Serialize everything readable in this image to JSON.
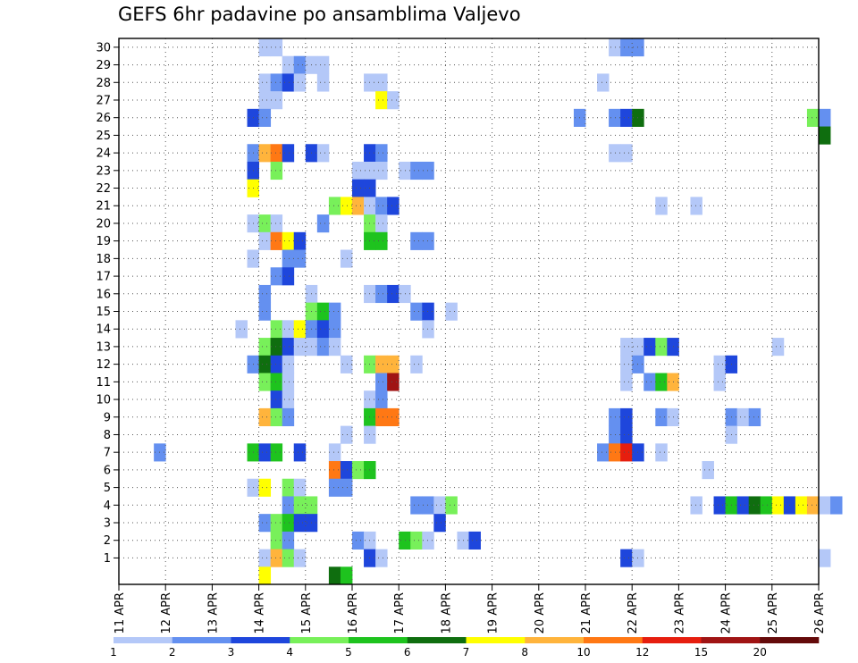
{
  "chart_data": {
    "type": "heatmap",
    "title": "GEFS 6hr padavine po ansamblima Valjevo",
    "xlabel": "",
    "ylabel": "",
    "x_tick_labels": [
      "11 APR",
      "12 APR",
      "13 APR",
      "14 APR",
      "15 APR",
      "16 APR",
      "17 APR",
      "18 APR",
      "19 APR",
      "20 APR",
      "21 APR",
      "22 APR",
      "23 APR",
      "24 APR",
      "25 APR",
      "26 APR"
    ],
    "xlim": [
      "11 APR 00Z",
      "26 APR 00Z"
    ],
    "time_step_hours": 6,
    "y_tick_labels": [
      "1",
      "2",
      "3",
      "4",
      "5",
      "6",
      "7",
      "8",
      "9",
      "10",
      "11",
      "12",
      "13",
      "14",
      "15",
      "16",
      "17",
      "18",
      "19",
      "20",
      "21",
      "22",
      "23",
      "24",
      "25",
      "26",
      "27",
      "28",
      "29",
      "30"
    ],
    "ylim": [
      0,
      30
    ],
    "grid": true,
    "colorbar": {
      "position": "bottom",
      "labels": [
        "1",
        "2",
        "3",
        "4",
        "5",
        "6",
        "7",
        "8",
        "10",
        "12",
        "15",
        "20"
      ],
      "colors": [
        "#b4c8f8",
        "#6490f0",
        "#1e46dc",
        "#78f05a",
        "#1ec31e",
        "#0f6e0f",
        "#ffff00",
        "#ffb43c",
        "#ff7814",
        "#e61e0f",
        "#a01414",
        "#640a0a"
      ]
    },
    "cells": [
      {
        "member": 30,
        "step": 12,
        "bin": 0
      },
      {
        "member": 30,
        "step": 13,
        "bin": 0
      },
      {
        "member": 30,
        "step": 42,
        "bin": 0
      },
      {
        "member": 30,
        "step": 43,
        "bin": 1
      },
      {
        "member": 30,
        "step": 44,
        "bin": 1
      },
      {
        "member": 29,
        "step": 14,
        "bin": 0
      },
      {
        "member": 29,
        "step": 15,
        "bin": 1
      },
      {
        "member": 29,
        "step": 16,
        "bin": 0
      },
      {
        "member": 29,
        "step": 17,
        "bin": 0
      },
      {
        "member": 28,
        "step": 12,
        "bin": 0
      },
      {
        "member": 28,
        "step": 13,
        "bin": 1
      },
      {
        "member": 28,
        "step": 14,
        "bin": 2
      },
      {
        "member": 28,
        "step": 15,
        "bin": 0
      },
      {
        "member": 28,
        "step": 17,
        "bin": 0
      },
      {
        "member": 28,
        "step": 21,
        "bin": 0
      },
      {
        "member": 28,
        "step": 22,
        "bin": 0
      },
      {
        "member": 28,
        "step": 41,
        "bin": 0
      },
      {
        "member": 27,
        "step": 12,
        "bin": 0
      },
      {
        "member": 27,
        "step": 13,
        "bin": 0
      },
      {
        "member": 27,
        "step": 22,
        "bin": 6
      },
      {
        "member": 27,
        "step": 23,
        "bin": 0
      },
      {
        "member": 26,
        "step": 11,
        "bin": 2
      },
      {
        "member": 26,
        "step": 12,
        "bin": 1
      },
      {
        "member": 26,
        "step": 39,
        "bin": 1
      },
      {
        "member": 26,
        "step": 42,
        "bin": 1
      },
      {
        "member": 26,
        "step": 43,
        "bin": 2
      },
      {
        "member": 26,
        "step": 44,
        "bin": 5
      },
      {
        "member": 26,
        "step": 59,
        "bin": 3
      },
      {
        "member": 26,
        "step": 60,
        "bin": 1
      },
      {
        "member": 25,
        "step": 60,
        "bin": 5
      },
      {
        "member": 24,
        "step": 11,
        "bin": 1
      },
      {
        "member": 24,
        "step": 12,
        "bin": 7
      },
      {
        "member": 24,
        "step": 13,
        "bin": 8
      },
      {
        "member": 24,
        "step": 14,
        "bin": 2
      },
      {
        "member": 24,
        "step": 16,
        "bin": 2
      },
      {
        "member": 24,
        "step": 17,
        "bin": 0
      },
      {
        "member": 24,
        "step": 21,
        "bin": 2
      },
      {
        "member": 24,
        "step": 22,
        "bin": 1
      },
      {
        "member": 24,
        "step": 42,
        "bin": 0
      },
      {
        "member": 24,
        "step": 43,
        "bin": 0
      },
      {
        "member": 23,
        "step": 11,
        "bin": 2
      },
      {
        "member": 23,
        "step": 13,
        "bin": 3
      },
      {
        "member": 23,
        "step": 20,
        "bin": 0
      },
      {
        "member": 23,
        "step": 21,
        "bin": 0
      },
      {
        "member": 23,
        "step": 22,
        "bin": 0
      },
      {
        "member": 23,
        "step": 24,
        "bin": 0
      },
      {
        "member": 23,
        "step": 25,
        "bin": 1
      },
      {
        "member": 23,
        "step": 26,
        "bin": 1
      },
      {
        "member": 22,
        "step": 11,
        "bin": 6
      },
      {
        "member": 22,
        "step": 20,
        "bin": 2
      },
      {
        "member": 22,
        "step": 21,
        "bin": 2
      },
      {
        "member": 21,
        "step": 18,
        "bin": 3
      },
      {
        "member": 21,
        "step": 19,
        "bin": 6
      },
      {
        "member": 21,
        "step": 20,
        "bin": 7
      },
      {
        "member": 21,
        "step": 21,
        "bin": 0
      },
      {
        "member": 21,
        "step": 22,
        "bin": 1
      },
      {
        "member": 21,
        "step": 23,
        "bin": 2
      },
      {
        "member": 21,
        "step": 46,
        "bin": 0
      },
      {
        "member": 21,
        "step": 49,
        "bin": 0
      },
      {
        "member": 20,
        "step": 11,
        "bin": 0
      },
      {
        "member": 20,
        "step": 12,
        "bin": 3
      },
      {
        "member": 20,
        "step": 13,
        "bin": 0
      },
      {
        "member": 20,
        "step": 17,
        "bin": 1
      },
      {
        "member": 20,
        "step": 21,
        "bin": 3
      },
      {
        "member": 20,
        "step": 22,
        "bin": 0
      },
      {
        "member": 19,
        "step": 12,
        "bin": 0
      },
      {
        "member": 19,
        "step": 13,
        "bin": 8
      },
      {
        "member": 19,
        "step": 14,
        "bin": 6
      },
      {
        "member": 19,
        "step": 15,
        "bin": 2
      },
      {
        "member": 19,
        "step": 21,
        "bin": 4
      },
      {
        "member": 19,
        "step": 22,
        "bin": 4
      },
      {
        "member": 19,
        "step": 25,
        "bin": 1
      },
      {
        "member": 19,
        "step": 26,
        "bin": 1
      },
      {
        "member": 18,
        "step": 11,
        "bin": 0
      },
      {
        "member": 18,
        "step": 14,
        "bin": 1
      },
      {
        "member": 18,
        "step": 15,
        "bin": 1
      },
      {
        "member": 18,
        "step": 19,
        "bin": 0
      },
      {
        "member": 17,
        "step": 13,
        "bin": 1
      },
      {
        "member": 17,
        "step": 14,
        "bin": 2
      },
      {
        "member": 16,
        "step": 12,
        "bin": 1
      },
      {
        "member": 16,
        "step": 16,
        "bin": 0
      },
      {
        "member": 16,
        "step": 21,
        "bin": 0
      },
      {
        "member": 16,
        "step": 22,
        "bin": 1
      },
      {
        "member": 16,
        "step": 23,
        "bin": 2
      },
      {
        "member": 16,
        "step": 24,
        "bin": 0
      },
      {
        "member": 15,
        "step": 12,
        "bin": 1
      },
      {
        "member": 15,
        "step": 16,
        "bin": 3
      },
      {
        "member": 15,
        "step": 17,
        "bin": 4
      },
      {
        "member": 15,
        "step": 18,
        "bin": 1
      },
      {
        "member": 15,
        "step": 25,
        "bin": 1
      },
      {
        "member": 15,
        "step": 26,
        "bin": 2
      },
      {
        "member": 15,
        "step": 28,
        "bin": 0
      },
      {
        "member": 14,
        "step": 10,
        "bin": 0
      },
      {
        "member": 14,
        "step": 13,
        "bin": 3
      },
      {
        "member": 14,
        "step": 14,
        "bin": 0
      },
      {
        "member": 14,
        "step": 15,
        "bin": 6
      },
      {
        "member": 14,
        "step": 16,
        "bin": 1
      },
      {
        "member": 14,
        "step": 17,
        "bin": 2
      },
      {
        "member": 14,
        "step": 18,
        "bin": 1
      },
      {
        "member": 14,
        "step": 26,
        "bin": 0
      },
      {
        "member": 13,
        "step": 12,
        "bin": 3
      },
      {
        "member": 13,
        "step": 13,
        "bin": 5
      },
      {
        "member": 13,
        "step": 14,
        "bin": 2
      },
      {
        "member": 13,
        "step": 15,
        "bin": 0
      },
      {
        "member": 13,
        "step": 16,
        "bin": 0
      },
      {
        "member": 13,
        "step": 17,
        "bin": 1
      },
      {
        "member": 13,
        "step": 18,
        "bin": 0
      },
      {
        "member": 13,
        "step": 43,
        "bin": 0
      },
      {
        "member": 13,
        "step": 44,
        "bin": 0
      },
      {
        "member": 13,
        "step": 45,
        "bin": 2
      },
      {
        "member": 13,
        "step": 46,
        "bin": 3
      },
      {
        "member": 13,
        "step": 47,
        "bin": 2
      },
      {
        "member": 13,
        "step": 56,
        "bin": 0
      },
      {
        "member": 12,
        "step": 11,
        "bin": 1
      },
      {
        "member": 12,
        "step": 12,
        "bin": 5
      },
      {
        "member": 12,
        "step": 13,
        "bin": 2
      },
      {
        "member": 12,
        "step": 14,
        "bin": 0
      },
      {
        "member": 12,
        "step": 19,
        "bin": 0
      },
      {
        "member": 12,
        "step": 21,
        "bin": 3
      },
      {
        "member": 12,
        "step": 22,
        "bin": 7
      },
      {
        "member": 12,
        "step": 23,
        "bin": 7
      },
      {
        "member": 12,
        "step": 25,
        "bin": 0
      },
      {
        "member": 12,
        "step": 43,
        "bin": 0
      },
      {
        "member": 12,
        "step": 44,
        "bin": 1
      },
      {
        "member": 12,
        "step": 51,
        "bin": 0
      },
      {
        "member": 12,
        "step": 52,
        "bin": 2
      },
      {
        "member": 11,
        "step": 12,
        "bin": 3
      },
      {
        "member": 11,
        "step": 13,
        "bin": 4
      },
      {
        "member": 11,
        "step": 14,
        "bin": 0
      },
      {
        "member": 11,
        "step": 22,
        "bin": 1
      },
      {
        "member": 11,
        "step": 23,
        "bin": 10
      },
      {
        "member": 11,
        "step": 43,
        "bin": 0
      },
      {
        "member": 11,
        "step": 45,
        "bin": 1
      },
      {
        "member": 11,
        "step": 46,
        "bin": 4
      },
      {
        "member": 11,
        "step": 47,
        "bin": 7
      },
      {
        "member": 11,
        "step": 51,
        "bin": 0
      },
      {
        "member": 10,
        "step": 13,
        "bin": 2
      },
      {
        "member": 10,
        "step": 14,
        "bin": 0
      },
      {
        "member": 10,
        "step": 21,
        "bin": 0
      },
      {
        "member": 10,
        "step": 22,
        "bin": 1
      },
      {
        "member": 9,
        "step": 12,
        "bin": 7
      },
      {
        "member": 9,
        "step": 13,
        "bin": 3
      },
      {
        "member": 9,
        "step": 14,
        "bin": 1
      },
      {
        "member": 9,
        "step": 21,
        "bin": 4
      },
      {
        "member": 9,
        "step": 22,
        "bin": 8
      },
      {
        "member": 9,
        "step": 23,
        "bin": 8
      },
      {
        "member": 9,
        "step": 42,
        "bin": 1
      },
      {
        "member": 9,
        "step": 43,
        "bin": 2
      },
      {
        "member": 9,
        "step": 46,
        "bin": 1
      },
      {
        "member": 9,
        "step": 47,
        "bin": 0
      },
      {
        "member": 9,
        "step": 52,
        "bin": 1
      },
      {
        "member": 9,
        "step": 53,
        "bin": 0
      },
      {
        "member": 9,
        "step": 54,
        "bin": 1
      },
      {
        "member": 8,
        "step": 19,
        "bin": 0
      },
      {
        "member": 8,
        "step": 21,
        "bin": 0
      },
      {
        "member": 8,
        "step": 42,
        "bin": 1
      },
      {
        "member": 8,
        "step": 43,
        "bin": 2
      },
      {
        "member": 8,
        "step": 52,
        "bin": 0
      },
      {
        "member": 7,
        "step": 3,
        "bin": 1
      },
      {
        "member": 7,
        "step": 11,
        "bin": 4
      },
      {
        "member": 7,
        "step": 12,
        "bin": 2
      },
      {
        "member": 7,
        "step": 13,
        "bin": 4
      },
      {
        "member": 7,
        "step": 15,
        "bin": 2
      },
      {
        "member": 7,
        "step": 18,
        "bin": 0
      },
      {
        "member": 7,
        "step": 41,
        "bin": 1
      },
      {
        "member": 7,
        "step": 42,
        "bin": 8
      },
      {
        "member": 7,
        "step": 43,
        "bin": 9
      },
      {
        "member": 7,
        "step": 44,
        "bin": 2
      },
      {
        "member": 7,
        "step": 46,
        "bin": 0
      },
      {
        "member": 6,
        "step": 18,
        "bin": 8
      },
      {
        "member": 6,
        "step": 19,
        "bin": 2
      },
      {
        "member": 6,
        "step": 20,
        "bin": 3
      },
      {
        "member": 6,
        "step": 21,
        "bin": 4
      },
      {
        "member": 6,
        "step": 50,
        "bin": 0
      },
      {
        "member": 5,
        "step": 11,
        "bin": 0
      },
      {
        "member": 5,
        "step": 12,
        "bin": 6
      },
      {
        "member": 5,
        "step": 14,
        "bin": 3
      },
      {
        "member": 5,
        "step": 15,
        "bin": 0
      },
      {
        "member": 5,
        "step": 18,
        "bin": 1
      },
      {
        "member": 5,
        "step": 19,
        "bin": 1
      },
      {
        "member": 4,
        "step": 14,
        "bin": 1
      },
      {
        "member": 4,
        "step": 15,
        "bin": 3
      },
      {
        "member": 4,
        "step": 16,
        "bin": 3
      },
      {
        "member": 4,
        "step": 25,
        "bin": 1
      },
      {
        "member": 4,
        "step": 26,
        "bin": 1
      },
      {
        "member": 4,
        "step": 27,
        "bin": 0
      },
      {
        "member": 4,
        "step": 28,
        "bin": 3
      },
      {
        "member": 4,
        "step": 49,
        "bin": 0
      },
      {
        "member": 4,
        "step": 51,
        "bin": 2
      },
      {
        "member": 4,
        "step": 52,
        "bin": 4
      },
      {
        "member": 4,
        "step": 53,
        "bin": 2
      },
      {
        "member": 4,
        "step": 54,
        "bin": 5
      },
      {
        "member": 4,
        "step": 55,
        "bin": 4
      },
      {
        "member": 4,
        "step": 56,
        "bin": 6
      },
      {
        "member": 4,
        "step": 57,
        "bin": 2
      },
      {
        "member": 4,
        "step": 58,
        "bin": 6
      },
      {
        "member": 4,
        "step": 59,
        "bin": 7
      },
      {
        "member": 4,
        "step": 60,
        "bin": 0
      },
      {
        "member": 4,
        "step": 61,
        "bin": 1
      },
      {
        "member": 3,
        "step": 12,
        "bin": 1
      },
      {
        "member": 3,
        "step": 13,
        "bin": 3
      },
      {
        "member": 3,
        "step": 14,
        "bin": 4
      },
      {
        "member": 3,
        "step": 15,
        "bin": 2
      },
      {
        "member": 3,
        "step": 16,
        "bin": 2
      },
      {
        "member": 3,
        "step": 27,
        "bin": 2
      },
      {
        "member": 2,
        "step": 13,
        "bin": 3
      },
      {
        "member": 2,
        "step": 14,
        "bin": 1
      },
      {
        "member": 2,
        "step": 20,
        "bin": 1
      },
      {
        "member": 2,
        "step": 21,
        "bin": 0
      },
      {
        "member": 2,
        "step": 24,
        "bin": 4
      },
      {
        "member": 2,
        "step": 25,
        "bin": 3
      },
      {
        "member": 2,
        "step": 26,
        "bin": 0
      },
      {
        "member": 2,
        "step": 29,
        "bin": 0
      },
      {
        "member": 2,
        "step": 30,
        "bin": 2
      },
      {
        "member": 1,
        "step": 12,
        "bin": 0
      },
      {
        "member": 1,
        "step": 13,
        "bin": 7
      },
      {
        "member": 1,
        "step": 14,
        "bin": 3
      },
      {
        "member": 1,
        "step": 15,
        "bin": 0
      },
      {
        "member": 1,
        "step": 21,
        "bin": 2
      },
      {
        "member": 1,
        "step": 22,
        "bin": 0
      },
      {
        "member": 1,
        "step": 43,
        "bin": 2
      },
      {
        "member": 1,
        "step": 44,
        "bin": 0
      },
      {
        "member": 1,
        "step": 60,
        "bin": 0
      },
      {
        "member": 0,
        "step": 12,
        "bin": 6
      },
      {
        "member": 0,
        "step": 18,
        "bin": 5
      },
      {
        "member": 0,
        "step": 19,
        "bin": 4
      }
    ]
  }
}
